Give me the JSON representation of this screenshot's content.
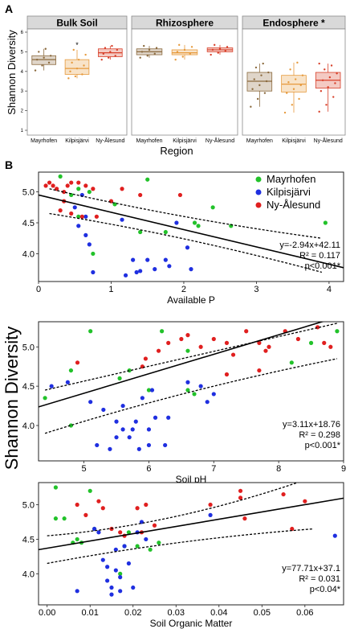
{
  "panel_labels": [
    "A",
    "B"
  ],
  "shared_ylabel_a": "Shannon Diversity",
  "shared_ylabel_b": "Shannon Diversity",
  "colors": {
    "Mayrhofen": "#22c22a",
    "Kilpisjärvi": "#1f2fe0",
    "Ny-Ålesund": "#e01f1f"
  },
  "chart_data": [
    {
      "type": "box",
      "panel": "A",
      "title": "Bulk Soil",
      "categories": [
        "Mayrhofen",
        "Kilpisjärvi",
        "Ny-Ålesund"
      ],
      "xlabel": "",
      "ylim": [
        1,
        6
      ],
      "yticks": [
        1,
        2,
        3,
        4,
        5,
        6
      ],
      "annotation": "*",
      "series": [
        {
          "category": "Mayrhofen",
          "min": 4.05,
          "q1": 4.35,
          "median": 4.6,
          "q3": 4.8,
          "max": 5.15,
          "points": [
            4.05,
            4.3,
            4.45,
            4.6,
            4.7,
            4.8,
            5.0,
            5.15
          ]
        },
        {
          "category": "Kilpisjärvi",
          "min": 3.65,
          "q1": 3.85,
          "median": 4.15,
          "q3": 4.6,
          "max": 5.1,
          "points": [
            3.65,
            3.75,
            3.85,
            4.0,
            4.15,
            4.3,
            4.45,
            4.6,
            4.85,
            5.1
          ]
        },
        {
          "category": "Ny-Ålesund",
          "min": 4.6,
          "q1": 4.75,
          "median": 4.95,
          "q3": 5.15,
          "max": 5.3,
          "points": [
            4.6,
            4.7,
            4.8,
            4.9,
            5.0,
            5.1,
            5.2,
            5.3
          ]
        }
      ]
    },
    {
      "type": "box",
      "panel": "A",
      "title": "Rhizosphere",
      "categories": [
        "Mayrhofen",
        "Kilpisjärvi",
        "Ny-Ålesund"
      ],
      "xlabel": "Region",
      "ylim": [
        1,
        6
      ],
      "series": [
        {
          "category": "Mayrhofen",
          "min": 4.7,
          "q1": 4.85,
          "median": 5.0,
          "q3": 5.15,
          "max": 5.3,
          "points": [
            4.7,
            4.8,
            4.9,
            5.0,
            5.1,
            5.2,
            5.3
          ]
        },
        {
          "category": "Kilpisjärvi",
          "min": 4.6,
          "q1": 4.85,
          "median": 4.95,
          "q3": 5.1,
          "max": 5.35,
          "points": [
            4.6,
            4.75,
            4.9,
            5.0,
            5.1,
            5.25,
            5.35
          ]
        },
        {
          "category": "Ny-Ålesund",
          "min": 4.85,
          "q1": 5.0,
          "median": 5.1,
          "q3": 5.2,
          "max": 5.35,
          "points": [
            4.85,
            4.95,
            5.05,
            5.1,
            5.15,
            5.25,
            5.35
          ]
        }
      ]
    },
    {
      "type": "box",
      "panel": "A",
      "title": "Endosphere *",
      "categories": [
        "Mayrhofen",
        "Kilpisjärvi",
        "Ny-Ålesund"
      ],
      "xlabel": "",
      "ylim": [
        1,
        6
      ],
      "series": [
        {
          "category": "Mayrhofen",
          "min": 2.2,
          "q1": 3.0,
          "median": 3.5,
          "q3": 3.95,
          "max": 4.4,
          "points": [
            2.2,
            2.6,
            2.9,
            3.1,
            3.3,
            3.5,
            3.6,
            3.8,
            3.95,
            4.2,
            4.4
          ]
        },
        {
          "category": "Kilpisjärvi",
          "min": 1.9,
          "q1": 2.95,
          "median": 3.35,
          "q3": 3.8,
          "max": 4.45,
          "points": [
            1.9,
            2.3,
            2.6,
            2.9,
            3.1,
            3.3,
            3.45,
            3.6,
            3.8,
            4.1,
            4.45
          ]
        },
        {
          "category": "Ny-Ålesund",
          "min": 1.95,
          "q1": 3.15,
          "median": 3.55,
          "q3": 3.95,
          "max": 4.4,
          "points": [
            1.95,
            2.3,
            2.7,
            3.0,
            3.2,
            3.4,
            3.55,
            3.7,
            3.9,
            4.1,
            4.3,
            4.4
          ]
        }
      ]
    },
    {
      "type": "scatter",
      "panel": "B",
      "xlabel": "Available P",
      "xlim": [
        0,
        4.2
      ],
      "ylim": [
        3.55,
        5.32
      ],
      "xticks": [
        0,
        1,
        2,
        3,
        4
      ],
      "yticks": [
        4.0,
        4.5,
        5.0
      ],
      "legend": "top-right",
      "fit": {
        "slope": -0.28,
        "intercept": 4.95,
        "upper": [
          [
            0.15,
            5.05
          ],
          [
            2.0,
            4.55
          ],
          [
            3.9,
            4.25
          ]
        ],
        "lower": [
          [
            0.15,
            4.65
          ],
          [
            2.0,
            4.3
          ],
          [
            3.9,
            3.7
          ]
        ]
      },
      "stats": [
        "y=-2.94x+42.11",
        "R² = 0.117",
        "p<0.001*"
      ],
      "series": [
        {
          "name": "Mayrhofen",
          "points": [
            [
              0.3,
              5.25
            ],
            [
              0.55,
              5.05
            ],
            [
              0.7,
              5.0
            ],
            [
              0.45,
              4.95
            ],
            [
              0.55,
              4.6
            ],
            [
              0.75,
              4.0
            ],
            [
              1.05,
              4.8
            ],
            [
              1.5,
              5.2
            ],
            [
              1.75,
              4.35
            ],
            [
              2.15,
              4.5
            ],
            [
              2.2,
              4.45
            ],
            [
              2.4,
              4.75
            ],
            [
              2.65,
              4.45
            ],
            [
              3.95,
              4.5
            ],
            [
              1.4,
              4.35
            ]
          ]
        },
        {
          "name": "Kilpisjärvi",
          "points": [
            [
              0.5,
              4.75
            ],
            [
              0.55,
              4.45
            ],
            [
              0.6,
              4.95
            ],
            [
              0.65,
              4.6
            ],
            [
              0.65,
              4.3
            ],
            [
              0.7,
              4.15
            ],
            [
              0.75,
              3.7
            ],
            [
              1.2,
              3.65
            ],
            [
              1.3,
              3.9
            ],
            [
              1.35,
              3.7
            ],
            [
              1.5,
              3.9
            ],
            [
              1.6,
              3.75
            ],
            [
              1.75,
              3.9
            ],
            [
              1.8,
              3.8
            ],
            [
              1.9,
              4.5
            ],
            [
              2.1,
              3.75
            ],
            [
              1.4,
              3.72
            ],
            [
              1.15,
              4.55
            ],
            [
              2.05,
              4.1
            ]
          ]
        },
        {
          "name": "Ny-Ålesund",
          "points": [
            [
              0.1,
              5.1
            ],
            [
              0.15,
              5.15
            ],
            [
              0.2,
              5.1
            ],
            [
              0.25,
              5.05
            ],
            [
              0.35,
              5.0
            ],
            [
              0.4,
              5.1
            ],
            [
              0.45,
              5.15
            ],
            [
              0.55,
              5.15
            ],
            [
              0.65,
              5.1
            ],
            [
              0.3,
              4.7
            ],
            [
              0.45,
              4.65
            ],
            [
              0.6,
              4.6
            ],
            [
              0.75,
              5.05
            ],
            [
              0.8,
              4.6
            ],
            [
              1.0,
              4.85
            ],
            [
              1.15,
              5.05
            ],
            [
              1.4,
              4.95
            ],
            [
              1.95,
              4.95
            ],
            [
              0.35,
              4.85
            ]
          ]
        }
      ]
    },
    {
      "type": "scatter",
      "panel": "B",
      "xlabel": "Soil pH",
      "xlim": [
        4.3,
        9.0
      ],
      "ylim": [
        3.55,
        5.32
      ],
      "xticks": [
        5,
        6,
        7,
        8,
        9
      ],
      "yticks": [
        4.0,
        4.5,
        5.0
      ],
      "fit": {
        "slope": 0.248,
        "intercept": 3.17,
        "upper": [
          [
            4.4,
            4.45
          ],
          [
            6.5,
            4.85
          ],
          [
            8.9,
            5.3
          ]
        ],
        "lower": [
          [
            4.4,
            3.9
          ],
          [
            6.5,
            4.45
          ],
          [
            8.9,
            4.85
          ]
        ]
      },
      "stats": [
        "y=3.11x+18.76",
        "R² = 0.298",
        "p<0.001*"
      ],
      "series": [
        {
          "name": "Mayrhofen",
          "points": [
            [
              4.4,
              4.35
            ],
            [
              4.8,
              4.0
            ],
            [
              4.8,
              4.7
            ],
            [
              5.1,
              5.2
            ],
            [
              5.55,
              4.6
            ],
            [
              5.7,
              4.7
            ],
            [
              6.0,
              4.45
            ],
            [
              6.2,
              5.2
            ],
            [
              6.6,
              4.45
            ],
            [
              6.6,
              4.95
            ],
            [
              6.7,
              4.4
            ],
            [
              8.9,
              5.2
            ],
            [
              8.2,
              4.8
            ],
            [
              8.5,
              5.05
            ]
          ]
        },
        {
          "name": "Kilpisjärvi",
          "points": [
            [
              4.5,
              4.5
            ],
            [
              4.75,
              4.55
            ],
            [
              5.1,
              4.3
            ],
            [
              5.2,
              3.75
            ],
            [
              5.3,
              4.2
            ],
            [
              5.4,
              3.7
            ],
            [
              5.5,
              3.85
            ],
            [
              5.5,
              4.05
            ],
            [
              5.6,
              3.95
            ],
            [
              5.7,
              3.85
            ],
            [
              5.75,
              3.95
            ],
            [
              5.8,
              4.05
            ],
            [
              5.85,
              3.7
            ],
            [
              5.9,
              4.35
            ],
            [
              6.0,
              3.75
            ],
            [
              6.0,
              3.95
            ],
            [
              6.05,
              4.45
            ],
            [
              6.1,
              4.1
            ],
            [
              6.25,
              3.75
            ],
            [
              6.3,
              4.1
            ],
            [
              6.6,
              4.55
            ],
            [
              6.8,
              4.5
            ],
            [
              7.0,
              4.4
            ],
            [
              6.9,
              4.3
            ],
            [
              5.6,
              4.25
            ]
          ]
        },
        {
          "name": "Ny-Ålesund",
          "points": [
            [
              4.9,
              4.8
            ],
            [
              5.9,
              4.75
            ],
            [
              5.95,
              4.85
            ],
            [
              6.15,
              4.95
            ],
            [
              6.3,
              5.05
            ],
            [
              6.5,
              5.1
            ],
            [
              6.6,
              5.15
            ],
            [
              6.8,
              5.0
            ],
            [
              7.0,
              5.1
            ],
            [
              7.2,
              5.05
            ],
            [
              7.3,
              4.9
            ],
            [
              7.5,
              5.2
            ],
            [
              7.7,
              5.05
            ],
            [
              7.8,
              4.95
            ],
            [
              7.85,
              5.0
            ],
            [
              8.1,
              5.2
            ],
            [
              8.3,
              5.1
            ],
            [
              8.6,
              5.25
            ],
            [
              8.7,
              5.05
            ],
            [
              8.8,
              5.0
            ],
            [
              7.2,
              4.65
            ],
            [
              7.7,
              4.7
            ]
          ]
        }
      ]
    },
    {
      "type": "scatter",
      "panel": "B",
      "xlabel": "Soil Organic Matter",
      "xlim": [
        -0.002,
        0.069
      ],
      "ylim": [
        3.55,
        5.32
      ],
      "xticks": [
        0.0,
        0.01,
        0.02,
        0.03,
        0.04,
        0.05,
        0.06
      ],
      "yticks": [
        4.0,
        4.5,
        5.0
      ],
      "fit": {
        "slope": 10.5,
        "intercept": 4.37,
        "upper": [
          [
            0.0,
            4.55
          ],
          [
            0.03,
            4.7
          ],
          [
            0.062,
            5.4
          ]
        ],
        "lower": [
          [
            0.0,
            4.15
          ],
          [
            0.03,
            4.5
          ],
          [
            0.062,
            4.65
          ]
        ]
      },
      "stats": [
        "y=77.71x+37.1",
        "R² = 0.031",
        "p<0.04*"
      ],
      "series": [
        {
          "name": "Mayrhofen",
          "points": [
            [
              0.002,
              5.25
            ],
            [
              0.002,
              4.8
            ],
            [
              0.004,
              4.8
            ],
            [
              0.006,
              4.45
            ],
            [
              0.007,
              4.5
            ],
            [
              0.01,
              5.2
            ],
            [
              0.011,
              4.65
            ],
            [
              0.017,
              4.0
            ],
            [
              0.018,
              4.4
            ],
            [
              0.019,
              4.6
            ],
            [
              0.021,
              4.4
            ],
            [
              0.024,
              4.35
            ],
            [
              0.026,
              4.45
            ],
            [
              0.008,
              4.45
            ]
          ]
        },
        {
          "name": "Kilpisjärvi",
          "points": [
            [
              0.007,
              3.75
            ],
            [
              0.011,
              4.65
            ],
            [
              0.012,
              4.6
            ],
            [
              0.013,
              4.2
            ],
            [
              0.014,
              4.1
            ],
            [
              0.014,
              3.9
            ],
            [
              0.015,
              3.8
            ],
            [
              0.015,
              3.7
            ],
            [
              0.016,
              4.05
            ],
            [
              0.017,
              3.75
            ],
            [
              0.017,
              3.95
            ],
            [
              0.018,
              4.4
            ],
            [
              0.019,
              4.15
            ],
            [
              0.02,
              3.8
            ],
            [
              0.021,
              4.6
            ],
            [
              0.022,
              4.75
            ],
            [
              0.023,
              4.5
            ],
            [
              0.038,
              4.85
            ],
            [
              0.067,
              4.55
            ],
            [
              0.016,
              4.35
            ]
          ]
        },
        {
          "name": "Ny-Ålesund",
          "points": [
            [
              0.007,
              5.0
            ],
            [
              0.009,
              4.85
            ],
            [
              0.012,
              5.05
            ],
            [
              0.013,
              4.95
            ],
            [
              0.015,
              4.65
            ],
            [
              0.017,
              4.6
            ],
            [
              0.018,
              4.55
            ],
            [
              0.021,
              4.95
            ],
            [
              0.022,
              4.6
            ],
            [
              0.023,
              5.0
            ],
            [
              0.025,
              4.7
            ],
            [
              0.038,
              5.0
            ],
            [
              0.045,
              5.2
            ],
            [
              0.045,
              5.1
            ],
            [
              0.046,
              4.8
            ],
            [
              0.055,
              5.15
            ],
            [
              0.057,
              4.65
            ],
            [
              0.06,
              5.05
            ]
          ]
        }
      ]
    }
  ]
}
